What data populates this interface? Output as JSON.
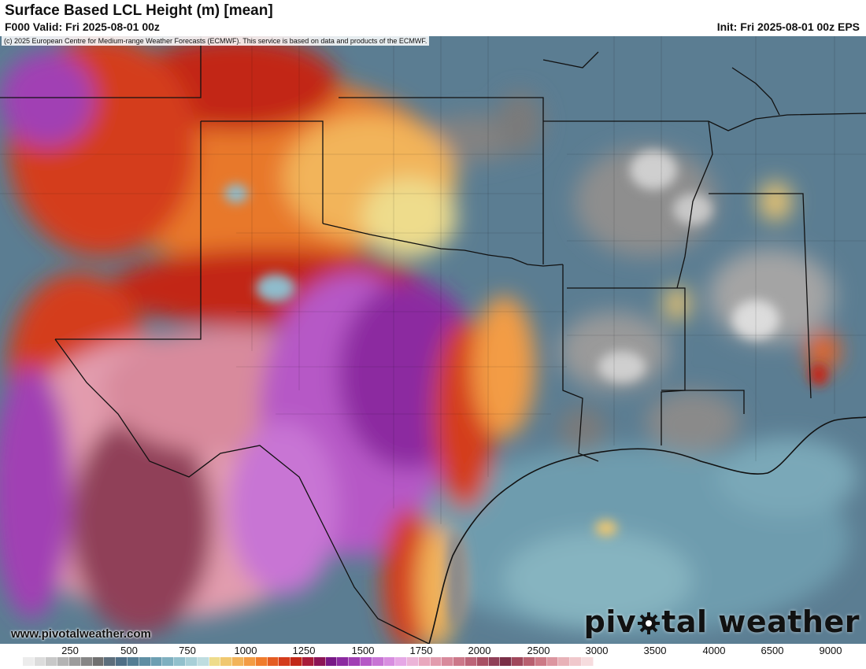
{
  "header": {
    "title": "Surface Based LCL Height (m) [mean]",
    "valid": "F000 Valid: Fri 2025-08-01 00z",
    "init": "Init: Fri 2025-08-01 00z EPS"
  },
  "map": {
    "copyright": "(c) 2025 European Centre for Medium-range Weather Forecasts (ECMWF). This service is based on data and products of the ECMWF.",
    "website": "www.pivotalweather.com",
    "brand_left": "piv",
    "brand_right": "tal weather",
    "brand_icon": "gear-icon"
  },
  "colorbar": {
    "tick_labels": [
      "250",
      "500",
      "750",
      "1000",
      "1250",
      "1500",
      "1750",
      "2000",
      "2500",
      "3000",
      "3500",
      "4000",
      "6500",
      "9000"
    ],
    "colors": [
      "#ffffff",
      "#ececec",
      "#dcdcdc",
      "#c8c8c8",
      "#b4b4b4",
      "#9c9c9c",
      "#868686",
      "#707070",
      "#5c6e7c",
      "#4f6f86",
      "#557e94",
      "#5f8fa4",
      "#6d9fb2",
      "#7fb0c0",
      "#92c0cc",
      "#a8cfd7",
      "#bfdde0",
      "#eedc8c",
      "#f0c870",
      "#f2b45a",
      "#f39c44",
      "#f07c2c",
      "#e45c22",
      "#d43c1c",
      "#c22818",
      "#a91c3a",
      "#8c1456",
      "#781886",
      "#8c2aa0",
      "#a13fb4",
      "#b658c6",
      "#c874d4",
      "#d88ee0",
      "#e6a8e6",
      "#ecb4d8",
      "#e9a8be",
      "#e29cae",
      "#d88a9c",
      "#cc788a",
      "#bc6478",
      "#a85064",
      "#904058",
      "#7a3048",
      "#a0485c",
      "#b86070",
      "#cc7a86",
      "#dc96a0",
      "#e8b2b8",
      "#f0c8cc",
      "#f6dcde"
    ]
  }
}
